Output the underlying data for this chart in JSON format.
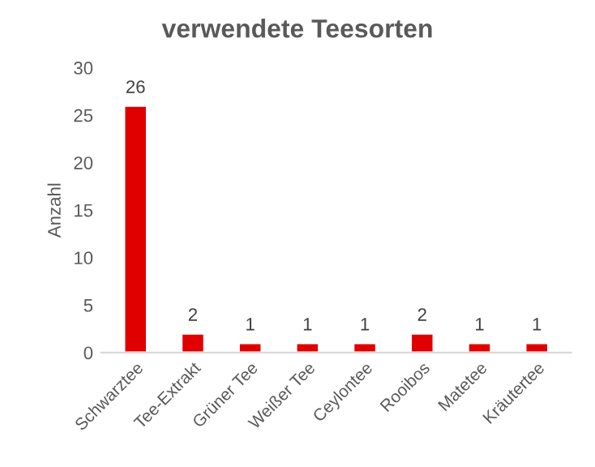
{
  "chart_data": {
    "type": "bar",
    "title": "verwendete Teesorten",
    "ylabel": "Anzahl",
    "categories": [
      "Schwarztee",
      "Tee-Extrakt",
      "Grüner Tee",
      "Weißer Tee",
      "Ceylontee",
      "Rooibos",
      "Matetee",
      "Kräutertee"
    ],
    "values": [
      26,
      2,
      1,
      1,
      1,
      2,
      1,
      1
    ],
    "color": "#e00000",
    "ylim": [
      0,
      30
    ],
    "yticks": [
      0,
      5,
      10,
      15,
      20,
      25,
      30
    ],
    "grid": false,
    "data_labels": true
  }
}
